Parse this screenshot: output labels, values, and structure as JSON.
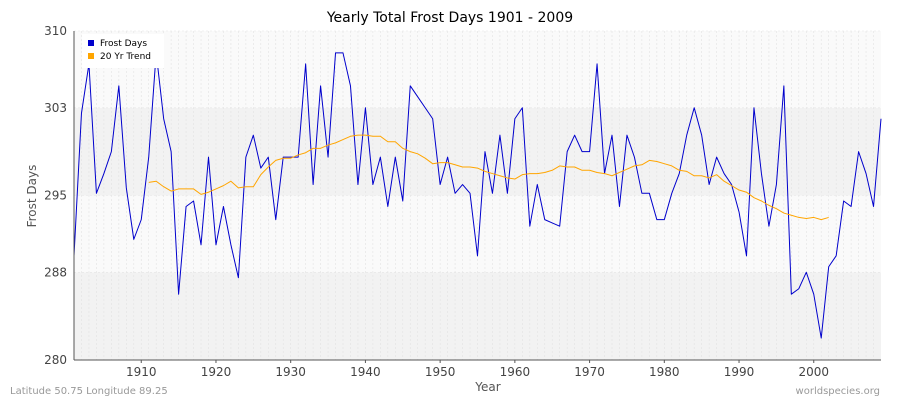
{
  "chart_data": {
    "type": "line",
    "title": "Yearly Total Frost Days 1901 - 2009",
    "xlabel": "Year",
    "ylabel": "Frost Days",
    "xlim": [
      1901,
      2009
    ],
    "ylim": [
      280,
      310
    ],
    "x_ticks": [
      1910,
      1920,
      1930,
      1940,
      1950,
      1960,
      1970,
      1980,
      1990,
      2000
    ],
    "y_ticks": [
      280,
      288,
      295,
      303,
      310
    ],
    "grid": true,
    "legend_position": "top-left",
    "series": [
      {
        "name": "Frost Days",
        "color": "#0000cc",
        "x_start": 1901,
        "values": [
          289.5,
          302.5,
          307,
          295.2,
          297,
          299,
          305,
          295.7,
          291,
          292.8,
          298.5,
          308,
          302,
          299,
          286,
          294,
          294.5,
          290.5,
          298.5,
          290.5,
          294,
          290.5,
          287.5,
          298.5,
          300.5,
          297.5,
          298.5,
          292.8,
          298.5,
          298.5,
          298.5,
          307,
          296,
          305,
          298.5,
          308,
          308,
          305,
          296,
          303,
          296,
          298.5,
          294,
          298.5,
          294.5,
          305,
          304,
          303,
          302,
          296,
          298.5,
          295.2,
          296,
          295.2,
          289.5,
          299,
          295.2,
          300.5,
          295.2,
          302,
          303,
          292.2,
          296,
          292.8,
          292.5,
          292.2,
          299,
          300.5,
          299,
          299,
          307,
          297,
          300.5,
          294,
          300.5,
          298.5,
          295.2,
          295.2,
          292.8,
          292.8,
          295.2,
          297,
          300.5,
          303,
          300.5,
          296,
          298.5,
          297,
          296,
          293.5,
          289.5,
          303,
          297,
          292.2,
          296,
          305,
          286,
          286.5,
          288,
          286,
          282,
          288.5,
          289.5,
          294.5,
          294,
          299,
          297,
          294,
          302
        ]
      },
      {
        "name": "20 Yr Trend",
        "color": "#ffa500",
        "x_start": 1911,
        "values": [
          296.2,
          296.3,
          295.8,
          295.4,
          295.6,
          295.6,
          295.6,
          295.1,
          295.3,
          295.6,
          295.9,
          296.3,
          295.7,
          295.8,
          295.8,
          296.9,
          297.6,
          298.2,
          298.4,
          298.4,
          298.7,
          298.9,
          299.3,
          299.3,
          299.6,
          299.8,
          300.1,
          300.4,
          300.5,
          300.5,
          300.4,
          300.4,
          299.9,
          299.9,
          299.3,
          299.0,
          298.8,
          298.4,
          297.9,
          298.0,
          298.0,
          297.8,
          297.6,
          297.6,
          297.5,
          297.2,
          297.0,
          296.8,
          296.6,
          296.5,
          296.9,
          297.0,
          297.0,
          297.1,
          297.3,
          297.7,
          297.6,
          297.6,
          297.3,
          297.3,
          297.1,
          297.0,
          296.8,
          297.1,
          297.4,
          297.7,
          297.8,
          298.2,
          298.1,
          297.9,
          297.7,
          297.3,
          297.2,
          296.8,
          296.8,
          296.6,
          296.9,
          296.3,
          295.9,
          295.5,
          295.3,
          294.8,
          294.5,
          294.1,
          293.8,
          293.4,
          293.2,
          293.0,
          292.9,
          293.0,
          292.8,
          293.0
        ]
      }
    ]
  },
  "legend": {
    "items": [
      {
        "label": "Frost Days",
        "color": "#0000cc"
      },
      {
        "label": "20 Yr Trend",
        "color": "#ffa500"
      }
    ]
  },
  "footer": {
    "left": "Latitude 50.75 Longitude 89.25",
    "right": "worldspecies.org"
  },
  "colors": {
    "band_a": "#f2f2f2",
    "band_b": "#fafafa",
    "axis": "#555555"
  }
}
